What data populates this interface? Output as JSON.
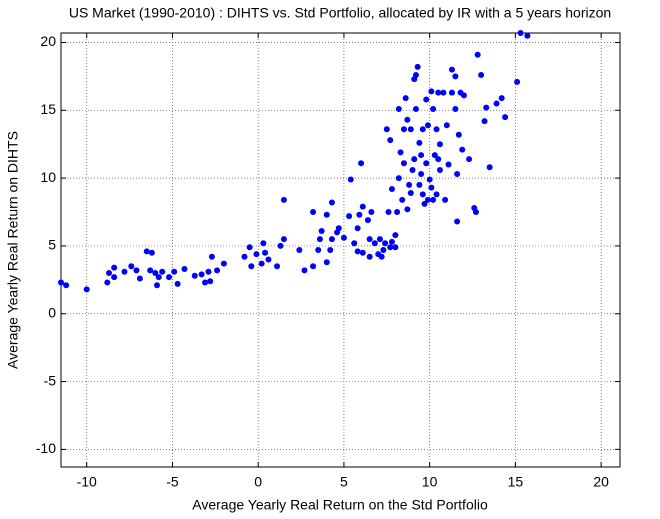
{
  "chart_data": {
    "type": "scatter",
    "title": "US Market (1990-2010) : DIHTS vs. Std Portfolio, allocated by IR with a 5 years horizon",
    "x_label": "Average Yearly Real Return on the Std Portfolio",
    "y_label": "Average Yearly Real Return on DIHTS",
    "color": "#0000ff",
    "grid": true,
    "xlim": [
      -11.5,
      21.1
    ],
    "ylim": [
      -11.3,
      20.7
    ],
    "xticks": [
      -10,
      -5,
      0,
      5,
      10,
      15,
      20
    ],
    "yticks": [
      -10,
      -5,
      0,
      5,
      10,
      15,
      20
    ],
    "x": [
      -11.5,
      -11.2,
      -10,
      -8.8,
      -8.7,
      -8.4,
      -8.4,
      -7.8,
      -7.4,
      -7.1,
      -6.9,
      -6.5,
      -6.2,
      -6.3,
      -6,
      -5.9,
      -5.8,
      -5.6,
      -5.2,
      -4.9,
      -4.7,
      -4.3,
      -3.7,
      -3.3,
      -3.1,
      -2.9,
      -2.7,
      -2.8,
      -2.4,
      -2,
      -0.8,
      -0.5,
      -0.4,
      -0.1,
      0.2,
      0.3,
      0.4,
      0.6,
      1.1,
      1.3,
      1.5,
      1.5,
      2.4,
      2.7,
      3.2,
      3.2,
      3.5,
      3.6,
      3.7,
      4,
      4,
      4.2,
      4.3,
      4.3,
      4.6,
      4.7,
      5,
      5.3,
      5.4,
      5.6,
      5.8,
      5.8,
      5.9,
      6,
      6.1,
      6.1,
      6.4,
      6.5,
      6.5,
      6.6,
      6.8,
      7,
      7.1,
      7.2,
      7.3,
      7.4,
      7.6,
      7.7,
      7.8,
      7.5,
      7.7,
      7.8,
      8,
      8,
      8.1,
      8.2,
      8.2,
      8.3,
      8.4,
      8.5,
      8.5,
      8.6,
      8.7,
      8.7,
      8.8,
      8.9,
      8.9,
      9,
      9.1,
      9.1,
      9.2,
      9.2,
      9.3,
      9.4,
      9.4,
      9.5,
      9.5,
      9.6,
      9.6,
      9.7,
      9.8,
      9.8,
      9.9,
      9.9,
      10,
      10.1,
      10.1,
      10.2,
      10.2,
      10.3,
      10.4,
      10.4,
      10.5,
      10.5,
      10.6,
      10.6,
      10.8,
      10.9,
      11,
      11.1,
      11.3,
      11.3,
      11.5,
      11.5,
      11.6,
      11.6,
      11.7,
      11.8,
      11.9,
      12,
      12.3,
      12.6,
      12.7,
      12.8,
      13,
      13.2,
      13.3,
      13.5,
      13.9,
      14.2,
      14.4,
      15.1,
      15.3,
      15.7
    ],
    "values": [
      2.3,
      2.1,
      1.8,
      2.3,
      3,
      3.4,
      2.7,
      3.1,
      3.5,
      3.2,
      2.6,
      4.6,
      4.5,
      3.2,
      3,
      2.1,
      2.7,
      3.1,
      2.7,
      3.1,
      2.2,
      3.3,
      2.8,
      2.9,
      2.3,
      3.1,
      4.2,
      2.4,
      3.2,
      3.7,
      4.2,
      4.9,
      3.5,
      4.4,
      3.7,
      5.2,
      4.5,
      4,
      3.5,
      5,
      5.5,
      8.4,
      4.7,
      3.2,
      3.5,
      7.5,
      4.7,
      5.5,
      6.1,
      7.3,
      3.8,
      4.7,
      5.5,
      8.2,
      6,
      6.3,
      5.6,
      7.2,
      9.9,
      5.2,
      6.3,
      4.6,
      7.3,
      11.1,
      4.5,
      7.9,
      6.9,
      5.5,
      4.2,
      7.5,
      5.2,
      4.4,
      5.5,
      4.2,
      4.7,
      5.2,
      7.5,
      4.9,
      5.3,
      13.6,
      12.8,
      9.2,
      4.9,
      5.8,
      7.5,
      15.1,
      10,
      11.9,
      8.4,
      11.1,
      13.6,
      15.9,
      14.3,
      7.7,
      9.5,
      13.6,
      8.9,
      10.6,
      17.3,
      11.4,
      15.1,
      17.6,
      18.2,
      12.6,
      9.5,
      10.3,
      11.7,
      8.8,
      13.6,
      8.1,
      15.8,
      11.1,
      8.4,
      13.9,
      9.9,
      9.3,
      16.4,
      8.4,
      15.1,
      11.7,
      8.8,
      13.6,
      11.4,
      16.3,
      12.5,
      10.6,
      16.3,
      8.4,
      13.9,
      11,
      16.3,
      18,
      15.1,
      17.5,
      10.3,
      6.8,
      13.2,
      16.3,
      12.1,
      16.1,
      11.4,
      7.8,
      7.5,
      19.1,
      17.6,
      14.2,
      15.2,
      10.8,
      15.5,
      15.9,
      14.5,
      17.1,
      20.7,
      20.5
    ]
  }
}
